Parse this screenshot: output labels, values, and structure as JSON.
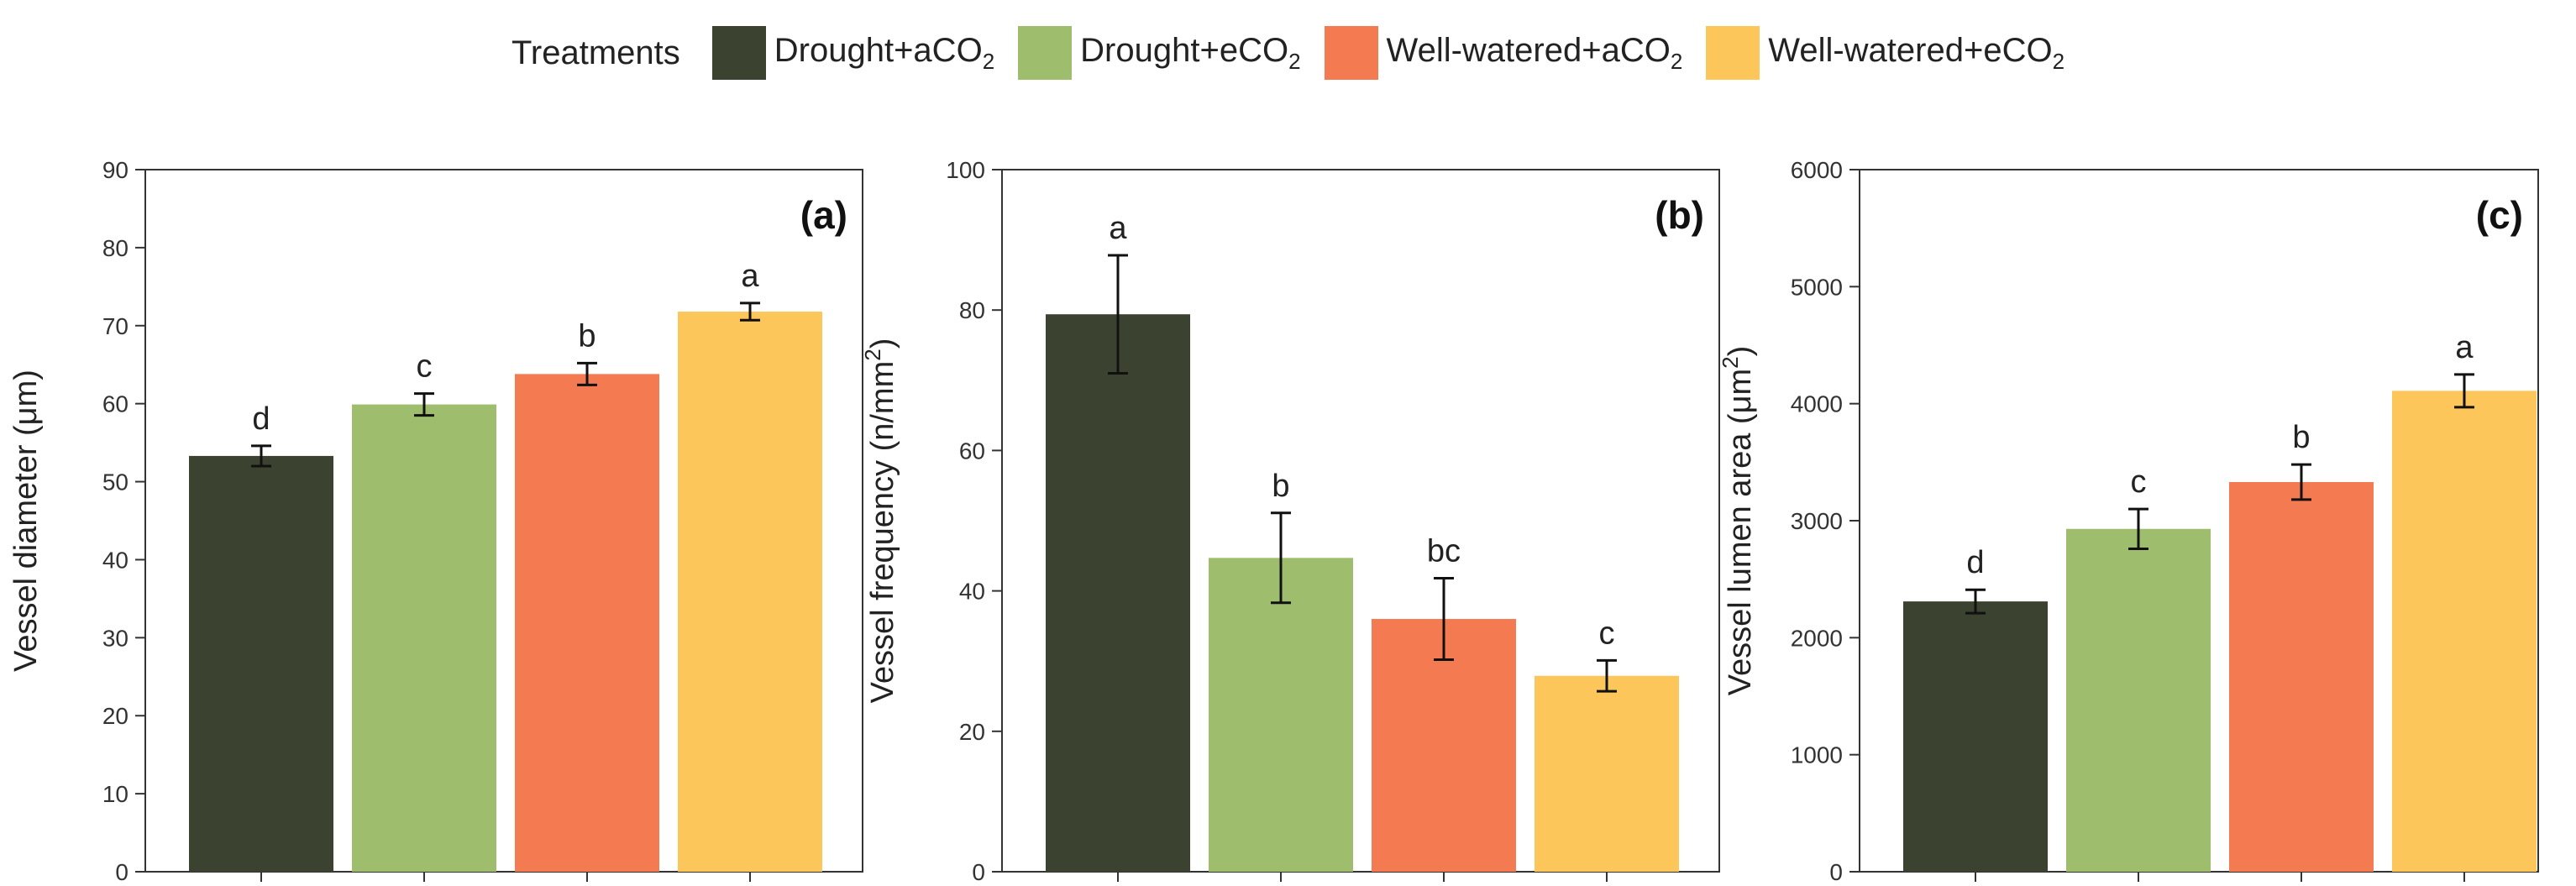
{
  "legend": {
    "title": "Treatments",
    "items": [
      {
        "text": "Drought+aCO",
        "sub": "2",
        "color": "#3b4230"
      },
      {
        "text": "Drought+eCO",
        "sub": "2",
        "color": "#9fbe6d"
      },
      {
        "text": "Well-watered+aCO",
        "sub": "2",
        "color": "#f47a52"
      },
      {
        "text": "Well-watered+eCO",
        "sub": "2",
        "color": "#fdc65a"
      }
    ]
  },
  "chart_data": [
    {
      "type": "bar",
      "panel": "(a)",
      "ylabel": "Vessel diameter (μm)",
      "ylabel_sup": "",
      "ylabel_tail": "",
      "ylim": [
        0,
        90
      ],
      "yticks": [
        0,
        10,
        20,
        30,
        40,
        50,
        60,
        70,
        80,
        90
      ],
      "series": [
        "Drought+aCO2",
        "Drought+eCO2",
        "Well-watered+aCO2",
        "Well-watered+eCO2"
      ],
      "values": [
        53.3,
        59.9,
        63.8,
        71.8
      ],
      "errors": [
        1.3,
        1.4,
        1.4,
        1.1
      ],
      "letters": [
        "d",
        "c",
        "b",
        "a"
      ]
    },
    {
      "type": "bar",
      "panel": "(b)",
      "ylabel": "Vessel frequency (n/mm",
      "ylabel_sup": "2",
      "ylabel_tail": ")",
      "ylim": [
        0,
        100
      ],
      "yticks": [
        0,
        20,
        40,
        60,
        80,
        100
      ],
      "series": [
        "Drought+aCO2",
        "Drought+eCO2",
        "Well-watered+aCO2",
        "Well-watered+eCO2"
      ],
      "values": [
        79.4,
        44.7,
        36.0,
        27.9
      ],
      "errors": [
        8.4,
        6.4,
        5.8,
        2.2
      ],
      "letters": [
        "a",
        "b",
        "bc",
        "c"
      ]
    },
    {
      "type": "bar",
      "panel": "(c)",
      "ylabel": "Vessel lumen area (μm",
      "ylabel_sup": "2",
      "ylabel_tail": ")",
      "ylim": [
        0,
        6000
      ],
      "yticks": [
        0,
        1000,
        2000,
        3000,
        4000,
        5000,
        6000
      ],
      "series": [
        "Drought+aCO2",
        "Drought+eCO2",
        "Well-watered+aCO2",
        "Well-watered+eCO2"
      ],
      "values": [
        2310,
        2930,
        3330,
        4110
      ],
      "errors": [
        100,
        170,
        150,
        140
      ],
      "letters": [
        "d",
        "c",
        "b",
        "a"
      ]
    }
  ]
}
